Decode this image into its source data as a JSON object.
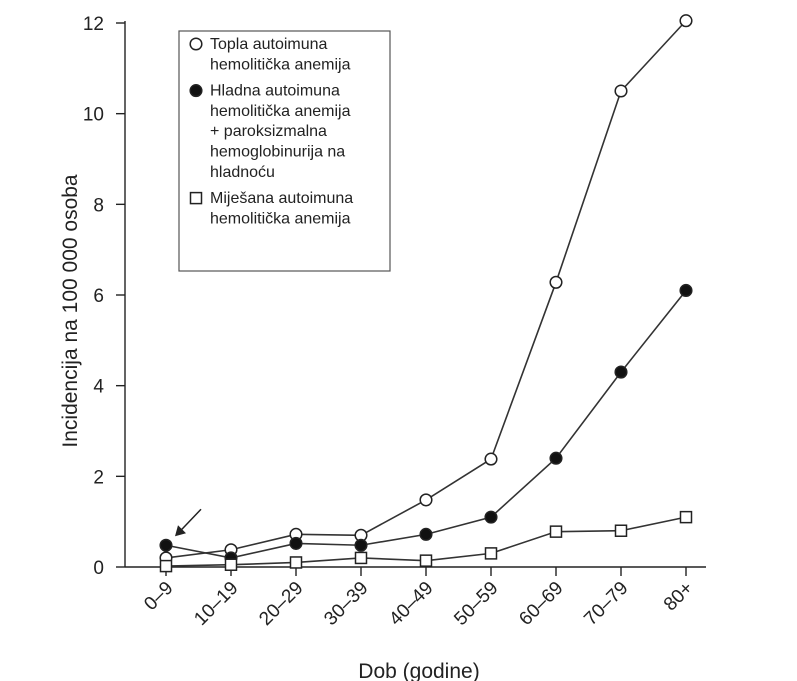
{
  "chart_data": {
    "type": "line",
    "xlabel": "Dob (godine)",
    "ylabel": "Incidencija na 100 000 osoba",
    "categories": [
      "0–9",
      "10–19",
      "20–29",
      "30–39",
      "40–49",
      "50–59",
      "60–69",
      "70–79",
      "80+"
    ],
    "ylim": [
      0,
      12
    ],
    "yticks": [
      "0",
      "2",
      "4",
      "6",
      "8",
      "10",
      "12"
    ],
    "grid": false,
    "legend_position": "top-left",
    "series": [
      {
        "name": "Topla autoimuna hemolitička anemija",
        "legend_lines": [
          "Topla autoimuna",
          "hemolitička anemija"
        ],
        "marker": "open-circle",
        "values": [
          0.2,
          0.38,
          0.72,
          0.7,
          1.48,
          2.38,
          6.28,
          10.5,
          12.05
        ]
      },
      {
        "name": "Hladna autoimuna hemolitička anemija + paroksizmalna hemoglobinurija na hladnoću",
        "legend_lines": [
          "Hladna autoimuna",
          "hemolitička anemija",
          "+ paroksizmalna",
          "hemoglobinurija na",
          "hladnoću"
        ],
        "marker": "filled-circle",
        "values": [
          0.48,
          0.2,
          0.52,
          0.48,
          0.72,
          1.1,
          2.4,
          4.3,
          6.1
        ]
      },
      {
        "name": "Miješana autoimuna hemolitička anemija",
        "legend_lines": [
          "Miješana autoimuna",
          "hemolitička anemija"
        ],
        "marker": "open-square",
        "values": [
          0.02,
          0.05,
          0.1,
          0.2,
          0.14,
          0.3,
          0.78,
          0.8,
          1.1
        ]
      }
    ],
    "annotation": {
      "type": "arrow",
      "category": "0–9",
      "value": 0.48
    }
  }
}
